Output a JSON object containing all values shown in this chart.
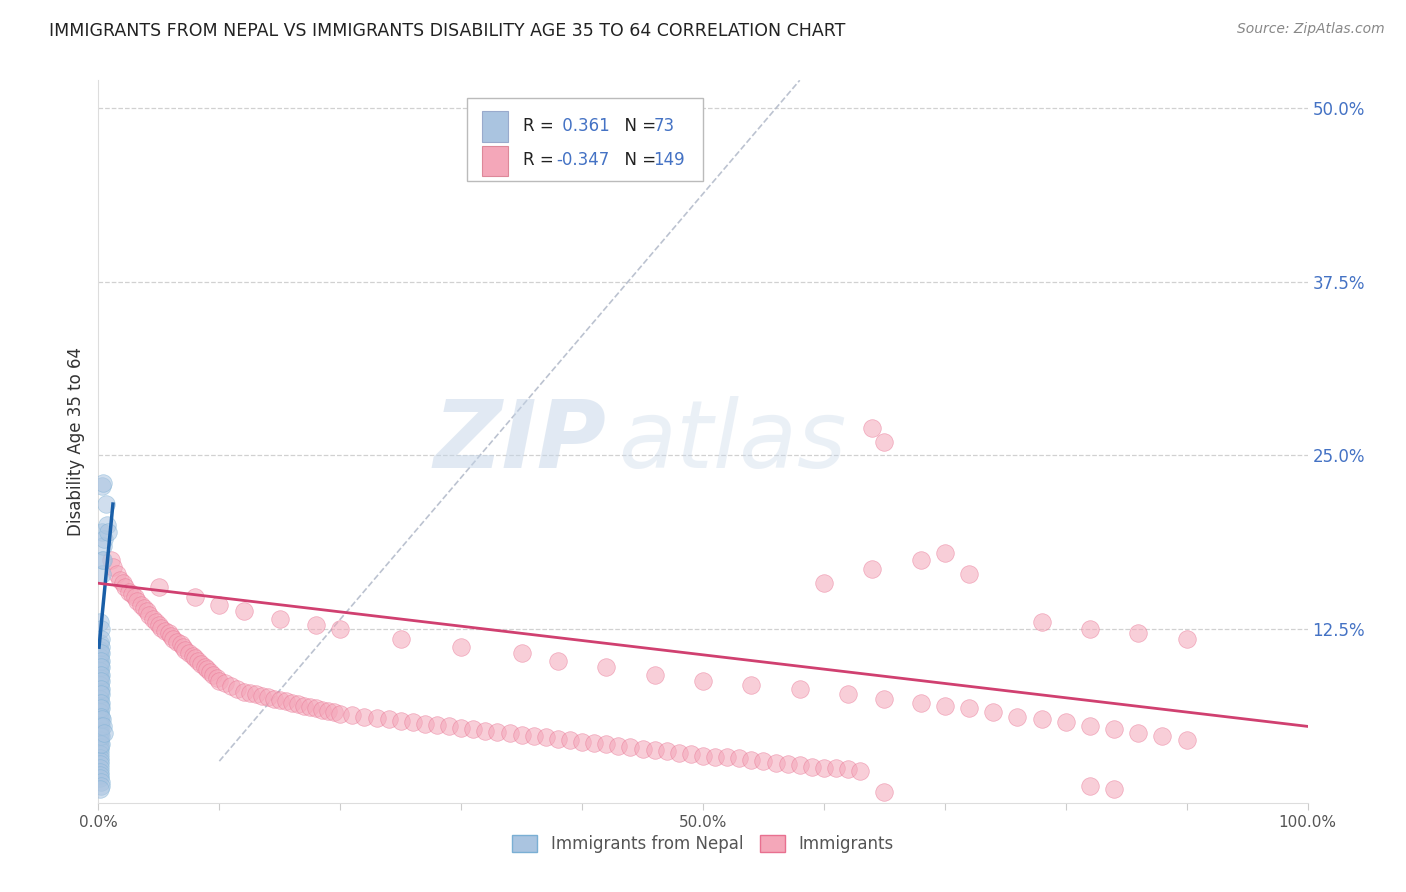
{
  "title": "IMMIGRANTS FROM NEPAL VS IMMIGRANTS DISABILITY AGE 35 TO 64 CORRELATION CHART",
  "source": "Source: ZipAtlas.com",
  "ylabel": "Disability Age 35 to 64",
  "legend_labels": [
    "Immigrants from Nepal",
    "Immigrants"
  ],
  "blue_R": 0.361,
  "blue_N": 73,
  "pink_R": -0.347,
  "pink_N": 149,
  "blue_color": "#aac4e0",
  "pink_color": "#f4a7b9",
  "blue_edge_color": "#7aafd4",
  "pink_edge_color": "#e87090",
  "blue_trend_color": "#1a5fa8",
  "pink_trend_color": "#d04070",
  "blue_scatter": [
    [
      0.001,
      0.13
    ],
    [
      0.001,
      0.115
    ],
    [
      0.001,
      0.11
    ],
    [
      0.001,
      0.108
    ],
    [
      0.001,
      0.105
    ],
    [
      0.001,
      0.102
    ],
    [
      0.001,
      0.1
    ],
    [
      0.001,
      0.098
    ],
    [
      0.001,
      0.095
    ],
    [
      0.001,
      0.092
    ],
    [
      0.001,
      0.09
    ],
    [
      0.001,
      0.088
    ],
    [
      0.001,
      0.085
    ],
    [
      0.001,
      0.082
    ],
    [
      0.001,
      0.08
    ],
    [
      0.001,
      0.078
    ],
    [
      0.001,
      0.075
    ],
    [
      0.001,
      0.072
    ],
    [
      0.001,
      0.07
    ],
    [
      0.001,
      0.068
    ],
    [
      0.001,
      0.065
    ],
    [
      0.001,
      0.062
    ],
    [
      0.001,
      0.06
    ],
    [
      0.001,
      0.058
    ],
    [
      0.001,
      0.055
    ],
    [
      0.001,
      0.052
    ],
    [
      0.001,
      0.05
    ],
    [
      0.001,
      0.048
    ],
    [
      0.001,
      0.045
    ],
    [
      0.001,
      0.042
    ],
    [
      0.001,
      0.04
    ],
    [
      0.001,
      0.038
    ],
    [
      0.001,
      0.035
    ],
    [
      0.001,
      0.032
    ],
    [
      0.001,
      0.03
    ],
    [
      0.001,
      0.028
    ],
    [
      0.001,
      0.025
    ],
    [
      0.001,
      0.022
    ],
    [
      0.001,
      0.02
    ],
    [
      0.001,
      0.018
    ],
    [
      0.002,
      0.125
    ],
    [
      0.002,
      0.118
    ],
    [
      0.002,
      0.112
    ],
    [
      0.002,
      0.108
    ],
    [
      0.002,
      0.102
    ],
    [
      0.002,
      0.098
    ],
    [
      0.002,
      0.092
    ],
    [
      0.002,
      0.088
    ],
    [
      0.002,
      0.082
    ],
    [
      0.002,
      0.078
    ],
    [
      0.002,
      0.072
    ],
    [
      0.002,
      0.068
    ],
    [
      0.002,
      0.062
    ],
    [
      0.002,
      0.055
    ],
    [
      0.002,
      0.048
    ],
    [
      0.002,
      0.042
    ],
    [
      0.003,
      0.228
    ],
    [
      0.003,
      0.195
    ],
    [
      0.004,
      0.23
    ],
    [
      0.006,
      0.215
    ],
    [
      0.003,
      0.175
    ],
    [
      0.003,
      0.165
    ],
    [
      0.004,
      0.185
    ],
    [
      0.004,
      0.175
    ],
    [
      0.005,
      0.19
    ],
    [
      0.007,
      0.2
    ],
    [
      0.008,
      0.195
    ],
    [
      0.003,
      0.06
    ],
    [
      0.004,
      0.055
    ],
    [
      0.005,
      0.05
    ],
    [
      0.002,
      0.015
    ],
    [
      0.002,
      0.012
    ],
    [
      0.001,
      0.01
    ]
  ],
  "pink_scatter": [
    [
      0.01,
      0.175
    ],
    [
      0.012,
      0.17
    ],
    [
      0.015,
      0.165
    ],
    [
      0.018,
      0.16
    ],
    [
      0.02,
      0.158
    ],
    [
      0.022,
      0.155
    ],
    [
      0.025,
      0.152
    ],
    [
      0.028,
      0.15
    ],
    [
      0.03,
      0.148
    ],
    [
      0.032,
      0.145
    ],
    [
      0.035,
      0.142
    ],
    [
      0.038,
      0.14
    ],
    [
      0.04,
      0.138
    ],
    [
      0.042,
      0.135
    ],
    [
      0.045,
      0.132
    ],
    [
      0.048,
      0.13
    ],
    [
      0.05,
      0.128
    ],
    [
      0.052,
      0.126
    ],
    [
      0.055,
      0.124
    ],
    [
      0.058,
      0.122
    ],
    [
      0.06,
      0.12
    ],
    [
      0.062,
      0.118
    ],
    [
      0.065,
      0.116
    ],
    [
      0.068,
      0.114
    ],
    [
      0.07,
      0.112
    ],
    [
      0.072,
      0.11
    ],
    [
      0.075,
      0.108
    ],
    [
      0.078,
      0.106
    ],
    [
      0.08,
      0.104
    ],
    [
      0.082,
      0.102
    ],
    [
      0.085,
      0.1
    ],
    [
      0.088,
      0.098
    ],
    [
      0.09,
      0.096
    ],
    [
      0.092,
      0.094
    ],
    [
      0.095,
      0.092
    ],
    [
      0.098,
      0.09
    ],
    [
      0.1,
      0.088
    ],
    [
      0.105,
      0.086
    ],
    [
      0.11,
      0.084
    ],
    [
      0.115,
      0.082
    ],
    [
      0.12,
      0.08
    ],
    [
      0.125,
      0.079
    ],
    [
      0.13,
      0.078
    ],
    [
      0.135,
      0.077
    ],
    [
      0.14,
      0.076
    ],
    [
      0.145,
      0.075
    ],
    [
      0.15,
      0.074
    ],
    [
      0.155,
      0.073
    ],
    [
      0.16,
      0.072
    ],
    [
      0.165,
      0.071
    ],
    [
      0.17,
      0.07
    ],
    [
      0.175,
      0.069
    ],
    [
      0.18,
      0.068
    ],
    [
      0.185,
      0.067
    ],
    [
      0.19,
      0.066
    ],
    [
      0.195,
      0.065
    ],
    [
      0.2,
      0.064
    ],
    [
      0.21,
      0.063
    ],
    [
      0.22,
      0.062
    ],
    [
      0.23,
      0.061
    ],
    [
      0.24,
      0.06
    ],
    [
      0.25,
      0.059
    ],
    [
      0.26,
      0.058
    ],
    [
      0.27,
      0.057
    ],
    [
      0.28,
      0.056
    ],
    [
      0.29,
      0.055
    ],
    [
      0.3,
      0.054
    ],
    [
      0.31,
      0.053
    ],
    [
      0.32,
      0.052
    ],
    [
      0.33,
      0.051
    ],
    [
      0.34,
      0.05
    ],
    [
      0.35,
      0.049
    ],
    [
      0.36,
      0.048
    ],
    [
      0.37,
      0.047
    ],
    [
      0.38,
      0.046
    ],
    [
      0.39,
      0.045
    ],
    [
      0.4,
      0.044
    ],
    [
      0.41,
      0.043
    ],
    [
      0.42,
      0.042
    ],
    [
      0.43,
      0.041
    ],
    [
      0.44,
      0.04
    ],
    [
      0.45,
      0.039
    ],
    [
      0.46,
      0.038
    ],
    [
      0.47,
      0.037
    ],
    [
      0.48,
      0.036
    ],
    [
      0.49,
      0.035
    ],
    [
      0.5,
      0.034
    ],
    [
      0.51,
      0.033
    ],
    [
      0.52,
      0.033
    ],
    [
      0.53,
      0.032
    ],
    [
      0.54,
      0.031
    ],
    [
      0.55,
      0.03
    ],
    [
      0.56,
      0.029
    ],
    [
      0.57,
      0.028
    ],
    [
      0.58,
      0.027
    ],
    [
      0.59,
      0.026
    ],
    [
      0.6,
      0.025
    ],
    [
      0.61,
      0.025
    ],
    [
      0.62,
      0.024
    ],
    [
      0.63,
      0.023
    ],
    [
      0.05,
      0.155
    ],
    [
      0.08,
      0.148
    ],
    [
      0.1,
      0.142
    ],
    [
      0.12,
      0.138
    ],
    [
      0.15,
      0.132
    ],
    [
      0.18,
      0.128
    ],
    [
      0.2,
      0.125
    ],
    [
      0.25,
      0.118
    ],
    [
      0.3,
      0.112
    ],
    [
      0.35,
      0.108
    ],
    [
      0.38,
      0.102
    ],
    [
      0.42,
      0.098
    ],
    [
      0.46,
      0.092
    ],
    [
      0.5,
      0.088
    ],
    [
      0.54,
      0.085
    ],
    [
      0.58,
      0.082
    ],
    [
      0.62,
      0.078
    ],
    [
      0.65,
      0.075
    ],
    [
      0.68,
      0.072
    ],
    [
      0.7,
      0.07
    ],
    [
      0.72,
      0.068
    ],
    [
      0.74,
      0.065
    ],
    [
      0.76,
      0.062
    ],
    [
      0.78,
      0.06
    ],
    [
      0.8,
      0.058
    ],
    [
      0.82,
      0.055
    ],
    [
      0.84,
      0.053
    ],
    [
      0.86,
      0.05
    ],
    [
      0.88,
      0.048
    ],
    [
      0.9,
      0.045
    ],
    [
      0.6,
      0.158
    ],
    [
      0.64,
      0.168
    ],
    [
      0.68,
      0.175
    ],
    [
      0.64,
      0.27
    ],
    [
      0.7,
      0.18
    ],
    [
      0.72,
      0.165
    ],
    [
      0.65,
      0.26
    ],
    [
      0.78,
      0.13
    ],
    [
      0.82,
      0.125
    ],
    [
      0.86,
      0.122
    ],
    [
      0.9,
      0.118
    ],
    [
      0.65,
      0.008
    ],
    [
      0.82,
      0.012
    ],
    [
      0.84,
      0.01
    ]
  ],
  "xlim": [
    0.0,
    1.0
  ],
  "ylim": [
    0.0,
    0.52
  ],
  "xticks": [
    0.0,
    0.1,
    0.2,
    0.3,
    0.4,
    0.5,
    0.6,
    0.7,
    0.8,
    0.9,
    1.0
  ],
  "xticklabels": [
    "0.0%",
    "",
    "",
    "",
    "",
    "50.0%",
    "",
    "",
    "",
    "",
    "100.0%"
  ],
  "yticks_right": [
    0.125,
    0.25,
    0.375,
    0.5
  ],
  "yticklabels_right": [
    "12.5%",
    "25.0%",
    "37.5%",
    "50.0%"
  ],
  "bg_color": "#ffffff",
  "grid_color": "#cccccc",
  "watermark_zip": "ZIP",
  "watermark_atlas": "atlas",
  "blue_trendline_x": [
    0.0005,
    0.012
  ],
  "blue_trendline_y": [
    0.112,
    0.215
  ],
  "pink_trendline_x": [
    0.0,
    1.0
  ],
  "pink_trendline_y": [
    0.158,
    0.055
  ],
  "diag_line_x": [
    0.1,
    0.58
  ],
  "diag_line_y": [
    0.03,
    0.52
  ]
}
